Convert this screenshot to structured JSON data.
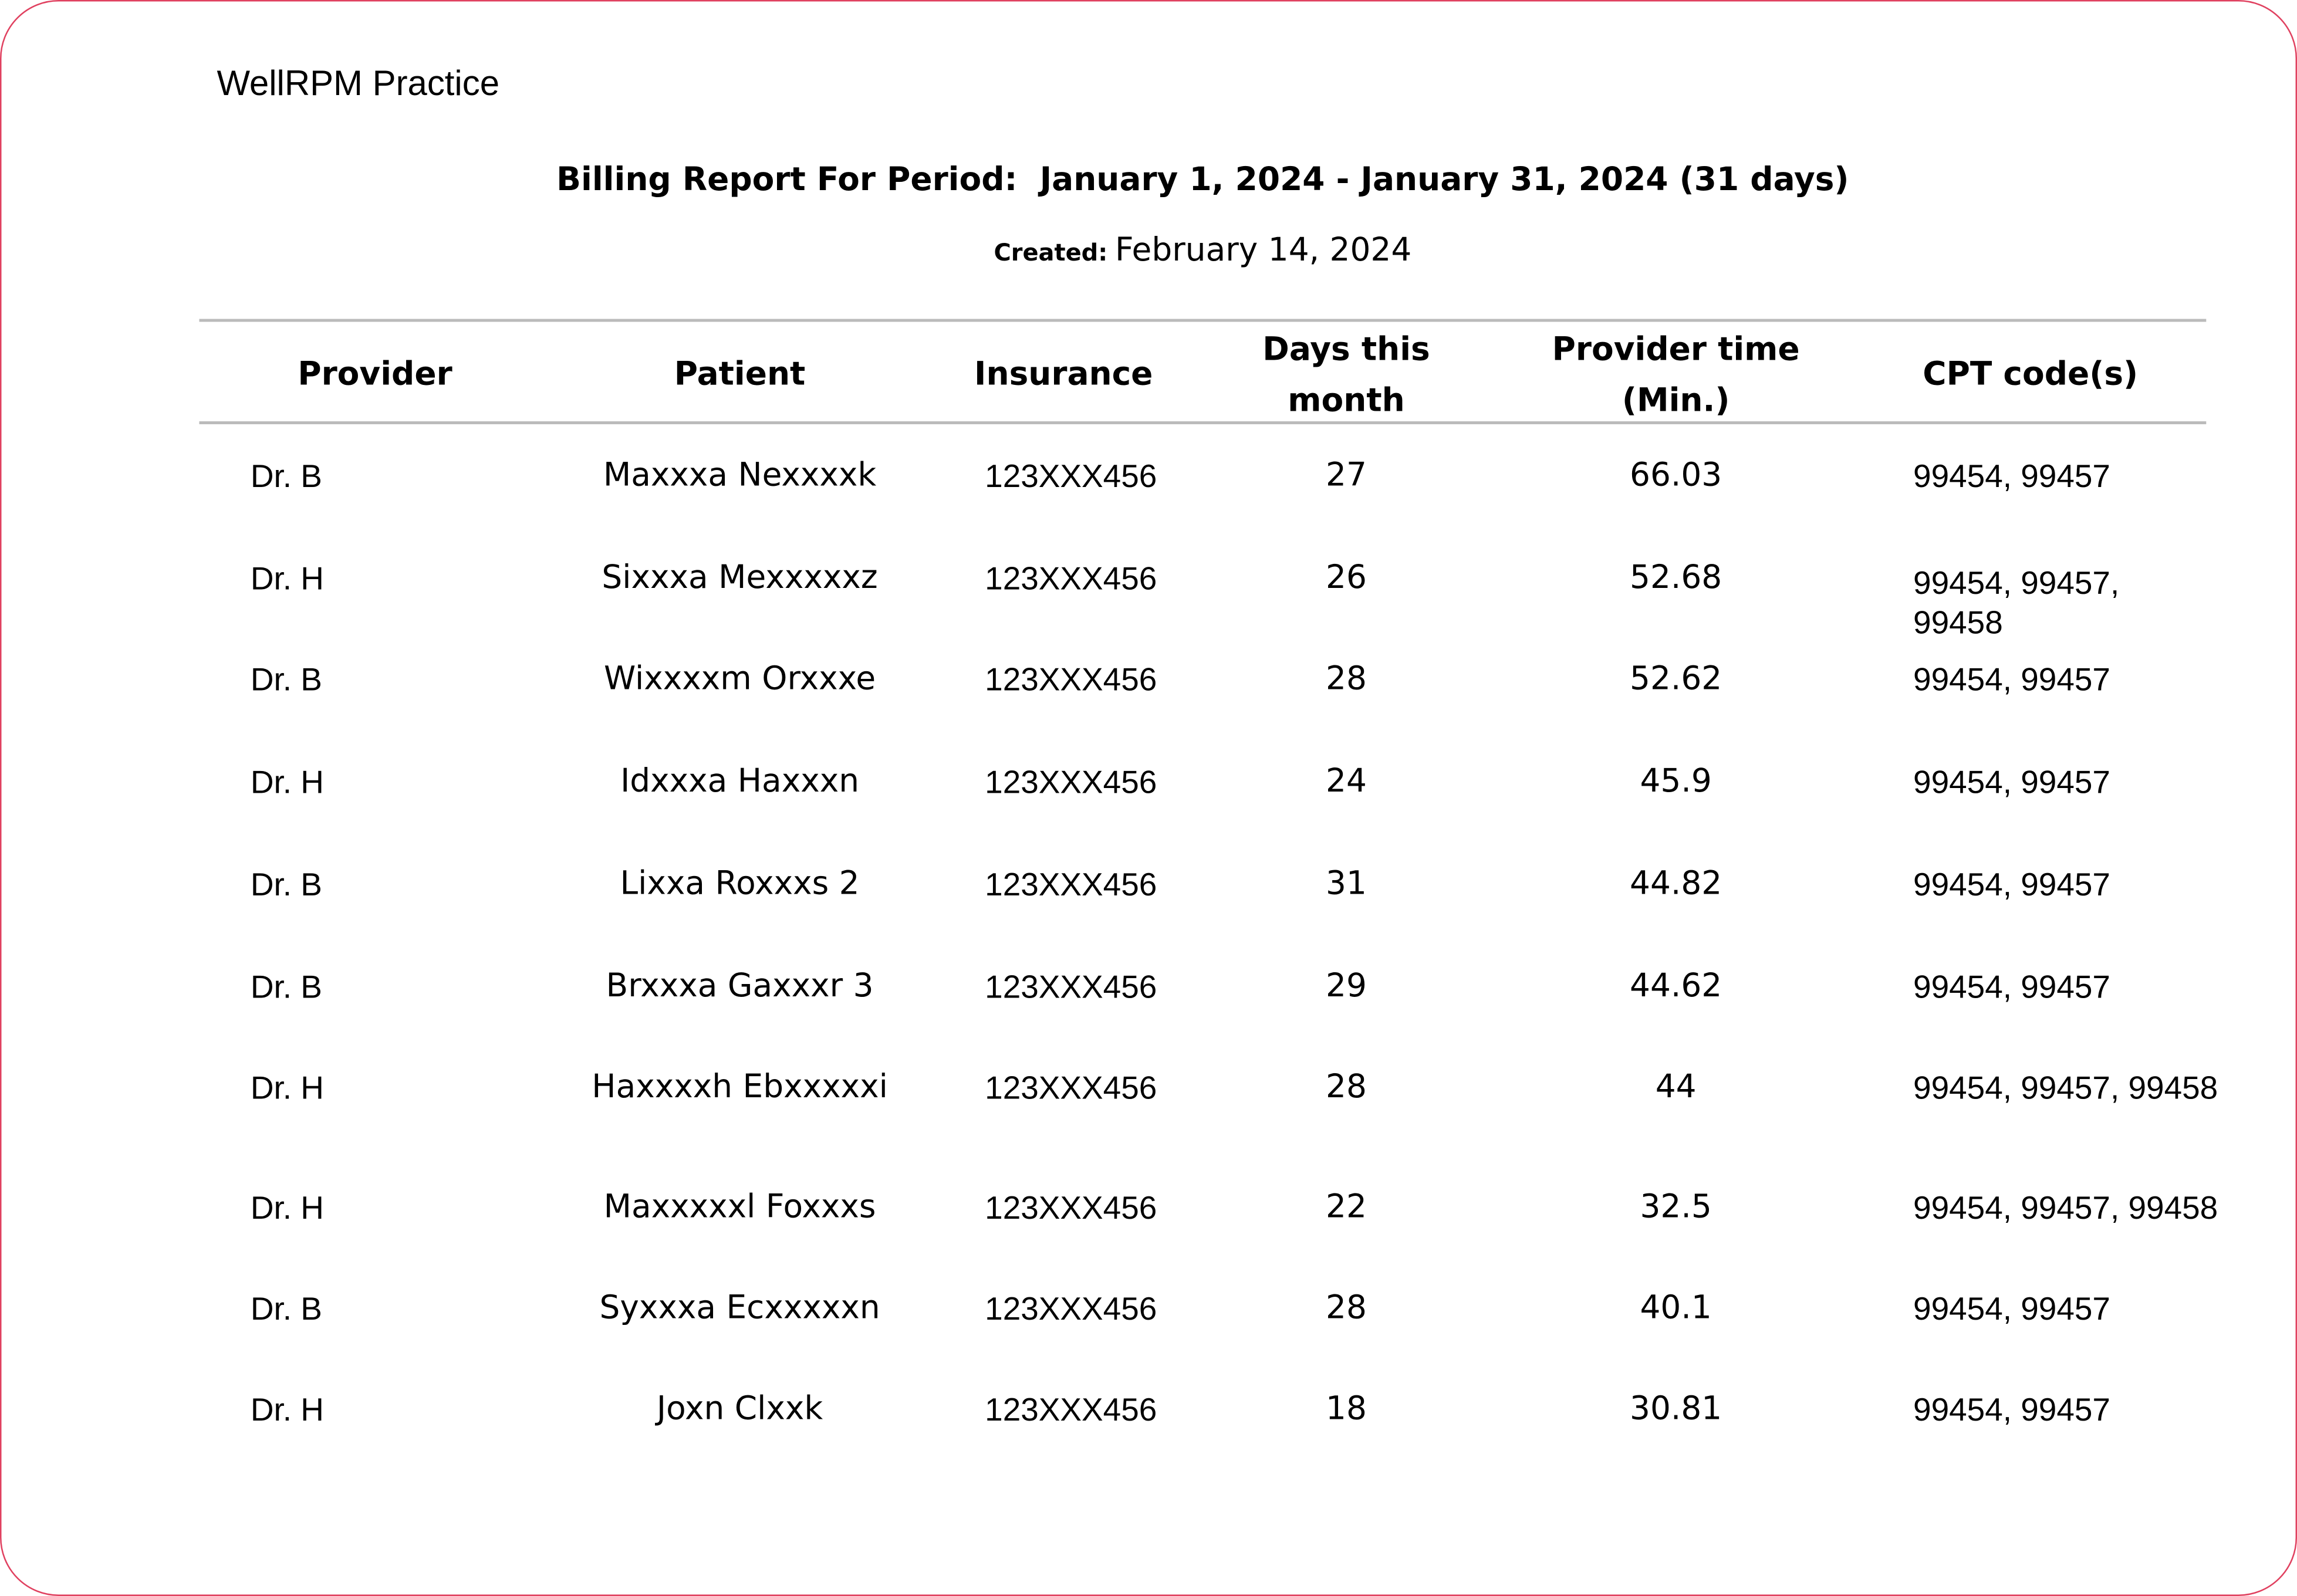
{
  "header": {
    "practice": "WellRPM Practice",
    "title": "Billing Report For Period:  January 1, 2024 - January 31, 2024 (31 days)",
    "created_label": "Created:",
    "created_date": "February 14, 2024"
  },
  "table": {
    "columns": [
      "Provider",
      "Patient",
      "Insurance",
      "Days this month",
      "Provider time (Min.)",
      "CPT code(s)"
    ],
    "rows": [
      [
        "Dr. B",
        "Maxxxa Nexxxxk",
        "123XXX456",
        27,
        66.03,
        "99454, 99457"
      ],
      [
        "Dr. H",
        "Sixxxa Mexxxxxz",
        "123XXX456",
        26,
        52.68,
        "99454, 99457, 99458"
      ],
      [
        "Dr. B",
        "Wixxxxm Orxxxe",
        "123XXX456",
        28,
        52.62,
        "99454, 99457"
      ],
      [
        "Dr. H",
        "Idxxxa Haxxxn",
        "123XXX456",
        24,
        45.9,
        "99454, 99457"
      ],
      [
        "Dr. B",
        "Lixxa Roxxxs 2",
        "123XXX456",
        31,
        44.82,
        "99454, 99457"
      ],
      [
        "Dr. B",
        "Brxxxa Gaxxxr 3",
        "123XXX456",
        29,
        44.62,
        "99454, 99457"
      ],
      [
        "Dr. H",
        "Haxxxxh Ebxxxxxi",
        "123XXX456",
        28,
        44,
        "99454, 99457, 99458"
      ],
      [
        "Dr. H",
        "Maxxxxxl Foxxxs",
        "123XXX456",
        22,
        32.5,
        "99454, 99457, 99458"
      ],
      [
        "Dr. B",
        "Syxxxa Ecxxxxxn",
        "123XXX456",
        28,
        40.1,
        "99454, 99457"
      ],
      [
        "Dr. H",
        "Joxn Clxxk",
        "123XXX456",
        18,
        30.81,
        "99454, 99457"
      ]
    ]
  }
}
